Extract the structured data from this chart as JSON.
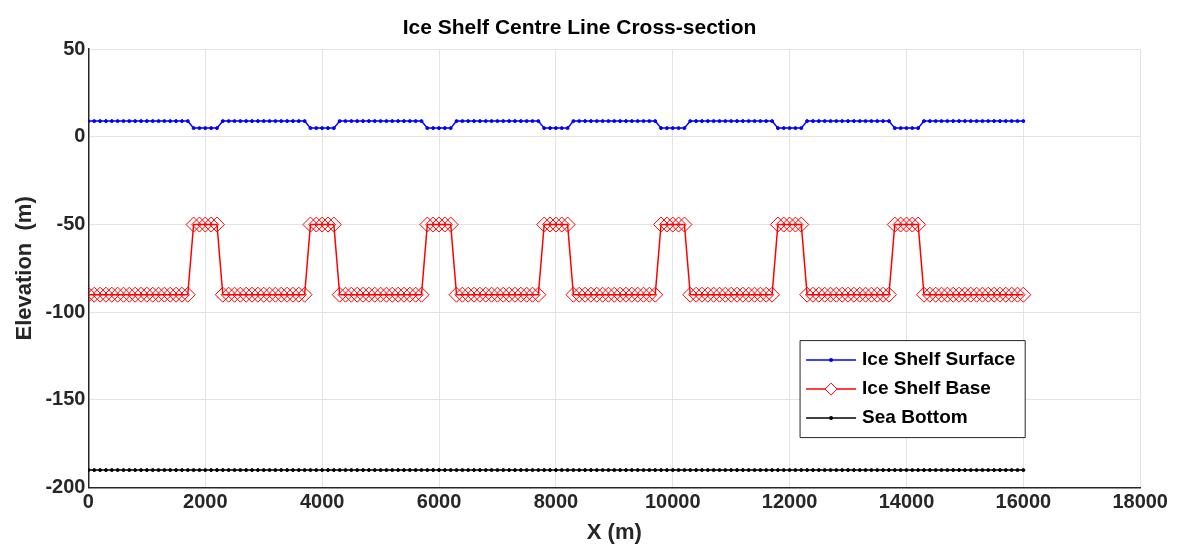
{
  "chart_data": {
    "type": "line",
    "title": "Ice Shelf Centre Line Cross-section",
    "xlabel": "X (m)",
    "ylabel": "Elevation  (m)",
    "x": [
      0,
      100,
      200,
      300,
      400,
      500,
      600,
      700,
      800,
      900,
      1000,
      1100,
      1200,
      1300,
      1400,
      1500,
      1600,
      1700,
      1800,
      1900,
      2000,
      2100,
      2200,
      2300,
      2400,
      2500,
      2600,
      2700,
      2800,
      2900,
      3000,
      3100,
      3200,
      3300,
      3400,
      3500,
      3600,
      3700,
      3800,
      3900,
      4000,
      4100,
      4200,
      4300,
      4400,
      4500,
      4600,
      4700,
      4800,
      4900,
      5000,
      5100,
      5200,
      5300,
      5400,
      5500,
      5600,
      5700,
      5800,
      5900,
      6000,
      6100,
      6200,
      6300,
      6400,
      6500,
      6600,
      6700,
      6800,
      6900,
      7000,
      7100,
      7200,
      7300,
      7400,
      7500,
      7600,
      7700,
      7800,
      7900,
      8000,
      8100,
      8200,
      8300,
      8400,
      8500,
      8600,
      8700,
      8800,
      8900,
      9000,
      9100,
      9200,
      9300,
      9400,
      9500,
      9600,
      9700,
      9800,
      9900,
      10000,
      10100,
      10200,
      10300,
      10400,
      10500,
      10600,
      10700,
      10800,
      10900,
      11000,
      11100,
      11200,
      11300,
      11400,
      11500,
      11600,
      11700,
      11800,
      11900,
      12000,
      12100,
      12200,
      12300,
      12400,
      12500,
      12600,
      12700,
      12800,
      12900,
      13000,
      13100,
      13200,
      13300,
      13400,
      13500,
      13600,
      13700,
      13800,
      13900,
      14000,
      14100,
      14200,
      14300,
      14400,
      14500,
      14600,
      14700,
      14800,
      14900,
      15000,
      15100,
      15200,
      15300,
      15400,
      15500,
      15600,
      15700,
      15800,
      15900,
      16000
    ],
    "series": [
      {
        "name": "Ice Shelf Surface",
        "color": "#0000ff",
        "marker": "circle",
        "values": [
          9,
          9,
          9,
          9,
          9,
          9,
          9,
          9,
          9,
          9,
          9,
          9,
          9,
          9,
          9,
          9,
          9,
          9,
          5,
          5,
          5,
          5,
          5,
          9,
          9,
          9,
          9,
          9,
          9,
          9,
          9,
          9,
          9,
          9,
          9,
          9,
          9,
          9,
          5,
          5,
          5,
          5,
          5,
          9,
          9,
          9,
          9,
          9,
          9,
          9,
          9,
          9,
          9,
          9,
          9,
          9,
          9,
          9,
          5,
          5,
          5,
          5,
          5,
          9,
          9,
          9,
          9,
          9,
          9,
          9,
          9,
          9,
          9,
          9,
          9,
          9,
          9,
          9,
          5,
          5,
          5,
          5,
          5,
          9,
          9,
          9,
          9,
          9,
          9,
          9,
          9,
          9,
          9,
          9,
          9,
          9,
          9,
          9,
          5,
          5,
          5,
          5,
          5,
          9,
          9,
          9,
          9,
          9,
          9,
          9,
          9,
          9,
          9,
          9,
          9,
          9,
          9,
          9,
          5,
          5,
          5,
          5,
          5,
          9,
          9,
          9,
          9,
          9,
          9,
          9,
          9,
          9,
          9,
          9,
          9,
          9,
          9,
          9,
          5,
          5,
          5,
          5,
          5,
          9,
          9,
          9,
          9,
          9,
          9,
          9,
          9,
          9,
          9,
          9,
          9,
          9,
          9,
          9,
          9,
          9,
          9
        ]
      },
      {
        "name": "Ice Shelf Base",
        "color": "#ff0000",
        "marker": "diamond",
        "values": [
          -90,
          -90,
          -90,
          -90,
          -90,
          -90,
          -90,
          -90,
          -90,
          -90,
          -90,
          -90,
          -90,
          -90,
          -90,
          -90,
          -90,
          -90,
          -50,
          -50,
          -50,
          -50,
          -50,
          -90,
          -90,
          -90,
          -90,
          -90,
          -90,
          -90,
          -90,
          -90,
          -90,
          -90,
          -90,
          -90,
          -90,
          -90,
          -50,
          -50,
          -50,
          -50,
          -50,
          -90,
          -90,
          -90,
          -90,
          -90,
          -90,
          -90,
          -90,
          -90,
          -90,
          -90,
          -90,
          -90,
          -90,
          -90,
          -50,
          -50,
          -50,
          -50,
          -50,
          -90,
          -90,
          -90,
          -90,
          -90,
          -90,
          -90,
          -90,
          -90,
          -90,
          -90,
          -90,
          -90,
          -90,
          -90,
          -50,
          -50,
          -50,
          -50,
          -50,
          -90,
          -90,
          -90,
          -90,
          -90,
          -90,
          -90,
          -90,
          -90,
          -90,
          -90,
          -90,
          -90,
          -90,
          -90,
          -50,
          -50,
          -50,
          -50,
          -50,
          -90,
          -90,
          -90,
          -90,
          -90,
          -90,
          -90,
          -90,
          -90,
          -90,
          -90,
          -90,
          -90,
          -90,
          -90,
          -50,
          -50,
          -50,
          -50,
          -50,
          -90,
          -90,
          -90,
          -90,
          -90,
          -90,
          -90,
          -90,
          -90,
          -90,
          -90,
          -90,
          -90,
          -90,
          -90,
          -50,
          -50,
          -50,
          -50,
          -50,
          -90,
          -90,
          -90,
          -90,
          -90,
          -90,
          -90,
          -90,
          -90,
          -90,
          -90,
          -90,
          -90,
          -90,
          -90,
          -90,
          -90,
          -90
        ]
      },
      {
        "name": "Sea Bottom",
        "color": "#000000",
        "marker": "circle",
        "values": [
          -190,
          -190,
          -190,
          -190,
          -190,
          -190,
          -190,
          -190,
          -190,
          -190,
          -190,
          -190,
          -190,
          -190,
          -190,
          -190,
          -190,
          -190,
          -190,
          -190,
          -190,
          -190,
          -190,
          -190,
          -190,
          -190,
          -190,
          -190,
          -190,
          -190,
          -190,
          -190,
          -190,
          -190,
          -190,
          -190,
          -190,
          -190,
          -190,
          -190,
          -190,
          -190,
          -190,
          -190,
          -190,
          -190,
          -190,
          -190,
          -190,
          -190,
          -190,
          -190,
          -190,
          -190,
          -190,
          -190,
          -190,
          -190,
          -190,
          -190,
          -190,
          -190,
          -190,
          -190,
          -190,
          -190,
          -190,
          -190,
          -190,
          -190,
          -190,
          -190,
          -190,
          -190,
          -190,
          -190,
          -190,
          -190,
          -190,
          -190,
          -190,
          -190,
          -190,
          -190,
          -190,
          -190,
          -190,
          -190,
          -190,
          -190,
          -190,
          -190,
          -190,
          -190,
          -190,
          -190,
          -190,
          -190,
          -190,
          -190,
          -190,
          -190,
          -190,
          -190,
          -190,
          -190,
          -190,
          -190,
          -190,
          -190,
          -190,
          -190,
          -190,
          -190,
          -190,
          -190,
          -190,
          -190,
          -190,
          -190,
          -190,
          -190,
          -190,
          -190,
          -190,
          -190,
          -190,
          -190,
          -190,
          -190,
          -190,
          -190,
          -190,
          -190,
          -190,
          -190,
          -190,
          -190,
          -190,
          -190,
          -190,
          -190,
          -190,
          -190,
          -190,
          -190,
          -190,
          -190,
          -190,
          -190,
          -190,
          -190,
          -190,
          -190,
          -190,
          -190,
          -190,
          -190,
          -190,
          -190,
          -190
        ]
      }
    ],
    "xlim": [
      0,
      18000
    ],
    "xticks": [
      0,
      2000,
      4000,
      6000,
      8000,
      10000,
      12000,
      14000,
      16000,
      18000
    ],
    "ylim": [
      -200,
      50
    ],
    "yticks": [
      -200,
      -150,
      -100,
      -50,
      0,
      50
    ],
    "grid": true,
    "legend": "bottom right",
    "line_style": "solid"
  }
}
